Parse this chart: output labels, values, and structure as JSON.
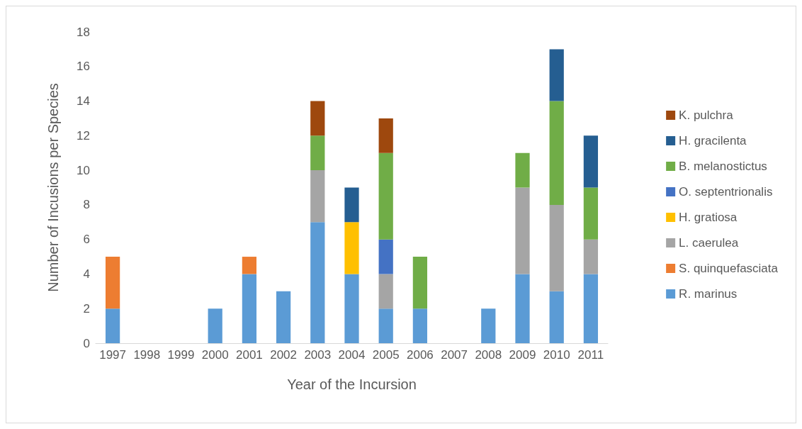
{
  "chart_data": {
    "type": "bar",
    "stacked": true,
    "xlabel": "Year of the Incursion",
    "ylabel": "Number of Incusions per Species",
    "categories": [
      "1997",
      "1998",
      "1999",
      "2000",
      "2001",
      "2002",
      "2003",
      "2004",
      "2005",
      "2006",
      "2007",
      "2008",
      "2009",
      "2010",
      "2011"
    ],
    "ylim": [
      0,
      18
    ],
    "yticks": [
      0,
      2,
      4,
      6,
      8,
      10,
      12,
      14,
      16,
      18
    ],
    "grid": false,
    "legend": "right",
    "series": [
      {
        "name": "R. marinus",
        "color": "#5b9bd5",
        "values": [
          2,
          null,
          null,
          2,
          4,
          3,
          7,
          4,
          2,
          2,
          null,
          2,
          4,
          3,
          4
        ]
      },
      {
        "name": "S. quinquefasciata",
        "color": "#ed7d31",
        "values": [
          3,
          null,
          null,
          null,
          1,
          null,
          null,
          null,
          null,
          null,
          null,
          null,
          null,
          null,
          null
        ]
      },
      {
        "name": "L. caerulea",
        "color": "#a5a5a5",
        "values": [
          null,
          null,
          null,
          null,
          null,
          null,
          3,
          null,
          2,
          null,
          null,
          null,
          5,
          5,
          2
        ]
      },
      {
        "name": "H. gratiosa",
        "color": "#ffc000",
        "values": [
          null,
          null,
          null,
          null,
          null,
          null,
          null,
          3,
          null,
          null,
          null,
          null,
          null,
          null,
          null
        ]
      },
      {
        "name": "O. septentrionalis",
        "color": "#4472c4",
        "values": [
          null,
          null,
          null,
          null,
          null,
          null,
          null,
          null,
          2,
          null,
          null,
          null,
          null,
          null,
          null
        ]
      },
      {
        "name": "B. melanostictus",
        "color": "#70ad47",
        "values": [
          null,
          null,
          null,
          null,
          null,
          null,
          2,
          null,
          5,
          3,
          null,
          null,
          2,
          6,
          3
        ]
      },
      {
        "name": "H. gracilenta",
        "color": "#255e91",
        "values": [
          null,
          null,
          null,
          null,
          null,
          null,
          null,
          2,
          null,
          null,
          null,
          null,
          null,
          3,
          3
        ]
      },
      {
        "name": "K. pulchra",
        "color": "#9e480e",
        "values": [
          null,
          null,
          null,
          null,
          null,
          null,
          2,
          null,
          2,
          null,
          null,
          null,
          null,
          null,
          null
        ]
      }
    ]
  }
}
